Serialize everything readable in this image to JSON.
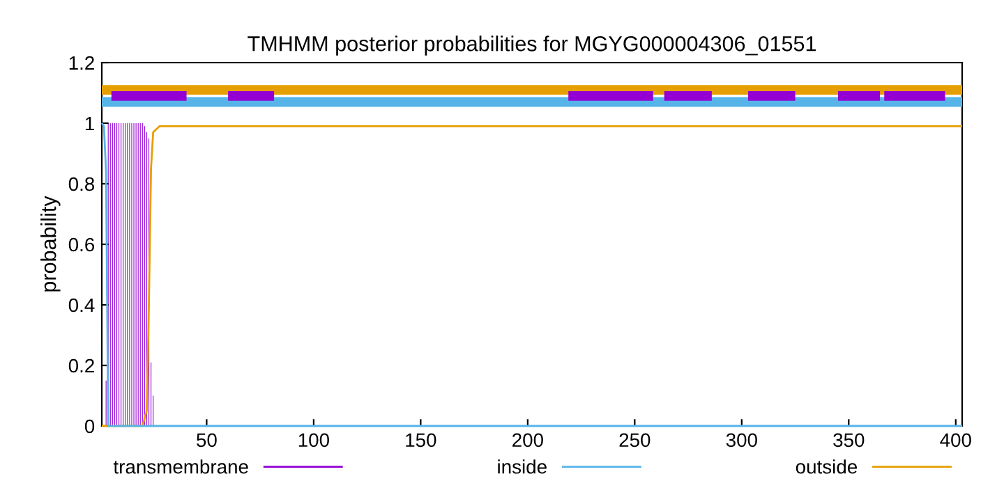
{
  "chart_data": {
    "type": "line",
    "title": "TMHMM posterior probabilities for MGYG000004306_01551",
    "ylabel": "probability",
    "xlim": [
      1,
      403
    ],
    "xticks": [
      50,
      100,
      150,
      200,
      250,
      300,
      350,
      400
    ],
    "ylim": [
      0,
      1.2
    ],
    "yticks": [
      0,
      0.2,
      0.4,
      0.6,
      0.8,
      1,
      1.2
    ],
    "grid": false,
    "legend": "bottom",
    "series": [
      {
        "name": "transmembrane",
        "type": "bar",
        "color": "#9400d3",
        "x": [
          3,
          4,
          5,
          6,
          7,
          8,
          9,
          10,
          11,
          12,
          13,
          14,
          15,
          16,
          17,
          18,
          19,
          20,
          21,
          22,
          23,
          24,
          25
        ],
        "values": [
          0.15,
          1,
          1,
          1,
          1,
          1,
          1,
          1,
          1,
          1,
          1,
          1,
          1,
          1,
          1,
          1,
          1,
          1,
          0.99,
          0.97,
          0.95,
          0.21,
          0.1
        ]
      },
      {
        "name": "inside",
        "color": "#56b4e9",
        "x": [
          1,
          2,
          3,
          4,
          403
        ],
        "values": [
          1,
          0.99,
          0.84,
          0,
          0
        ]
      },
      {
        "name": "outside",
        "color": "#e69f00",
        "x": [
          1,
          20,
          22,
          23,
          24,
          25,
          28,
          403
        ],
        "values": [
          0,
          0,
          0.05,
          0.4,
          0.85,
          0.97,
          0.99,
          0.99
        ]
      },
      {
        "color": "#e69f00",
        "x": [
          1,
          403
        ],
        "values": [
          1.11,
          1.11
        ]
      },
      {
        "color": "#56b4e9",
        "x": [
          1,
          403
        ],
        "values": [
          1.07,
          1.07
        ]
      },
      {
        "color": "#9400d3",
        "x": [
          5.5,
          40.6,
          41,
          60,
          81.5,
          82,
          219,
          258.6,
          259,
          263.8,
          286,
          287,
          303,
          325,
          326,
          345,
          364.6,
          365,
          366.6,
          395
        ],
        "values": [
          1.09,
          1.09,
          null,
          1.09,
          1.09,
          null,
          1.09,
          1.09,
          null,
          1.09,
          1.09,
          null,
          1.09,
          1.09,
          null,
          1.09,
          1.09,
          null,
          1.09,
          1.09
        ]
      }
    ]
  }
}
